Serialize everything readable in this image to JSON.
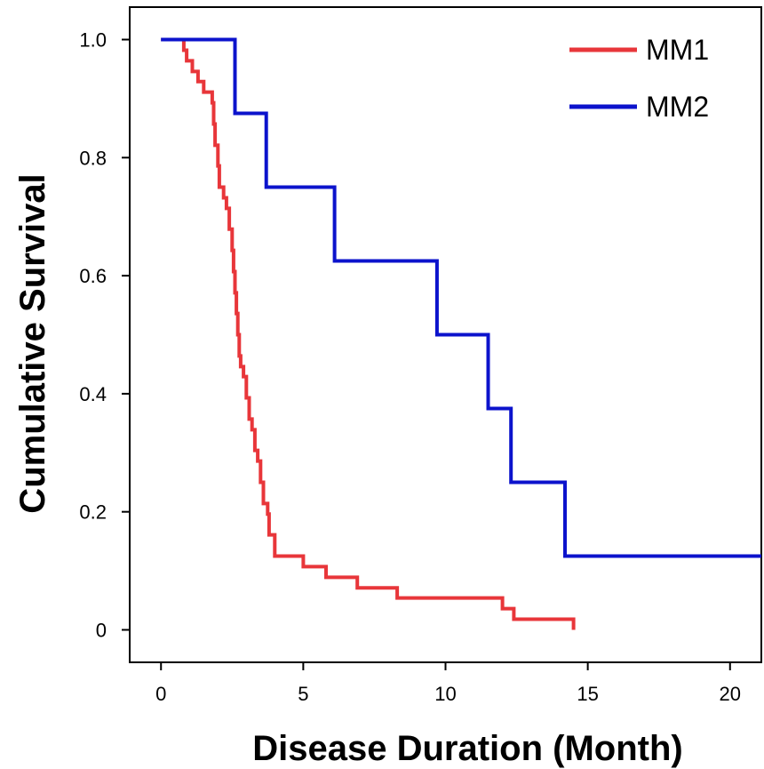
{
  "chart_data": {
    "type": "line",
    "step": true,
    "xlabel": "Disease Duration (Month)",
    "ylabel": "Cumulative Survival",
    "xlim": [
      -1.1,
      21.1
    ],
    "ylim": [
      -0.055,
      1.055
    ],
    "x_ticks": [
      0,
      5,
      10,
      15,
      20
    ],
    "x_tick_labels": [
      "0",
      "5",
      "10",
      "15",
      "20"
    ],
    "y_ticks": [
      0,
      0.2,
      0.4,
      0.6,
      0.8,
      1.0
    ],
    "y_tick_labels": [
      "0",
      "0.2",
      "0.4",
      "0.6",
      "0.8",
      "1.0"
    ],
    "grid": false,
    "legend_position": "top-right",
    "series": [
      {
        "name": "MM1",
        "color": "#e8363a",
        "points": [
          [
            0,
            1.0
          ],
          [
            0.7,
            1.0
          ],
          [
            0.8,
            0.982
          ],
          [
            0.9,
            0.964
          ],
          [
            1.1,
            0.946
          ],
          [
            1.3,
            0.929
          ],
          [
            1.5,
            0.911
          ],
          [
            1.8,
            0.893
          ],
          [
            1.85,
            0.857
          ],
          [
            1.9,
            0.821
          ],
          [
            2.0,
            0.786
          ],
          [
            2.05,
            0.75
          ],
          [
            2.2,
            0.732
          ],
          [
            2.3,
            0.714
          ],
          [
            2.4,
            0.679
          ],
          [
            2.5,
            0.643
          ],
          [
            2.55,
            0.607
          ],
          [
            2.6,
            0.571
          ],
          [
            2.65,
            0.536
          ],
          [
            2.7,
            0.5
          ],
          [
            2.75,
            0.464
          ],
          [
            2.8,
            0.446
          ],
          [
            2.9,
            0.429
          ],
          [
            3.0,
            0.393
          ],
          [
            3.1,
            0.357
          ],
          [
            3.2,
            0.339
          ],
          [
            3.3,
            0.304
          ],
          [
            3.4,
            0.286
          ],
          [
            3.5,
            0.25
          ],
          [
            3.6,
            0.214
          ],
          [
            3.75,
            0.196
          ],
          [
            3.8,
            0.161
          ],
          [
            4.0,
            0.125
          ],
          [
            5.0,
            0.107
          ],
          [
            5.8,
            0.089
          ],
          [
            6.9,
            0.071
          ],
          [
            8.3,
            0.054
          ],
          [
            12.0,
            0.036
          ],
          [
            12.4,
            0.018
          ],
          [
            14.5,
            0.018
          ],
          [
            14.5,
            0.0
          ]
        ]
      },
      {
        "name": "MM2",
        "color": "#0c13cc",
        "points": [
          [
            0,
            1.0
          ],
          [
            2.6,
            1.0
          ],
          [
            2.6,
            0.875
          ],
          [
            3.7,
            0.875
          ],
          [
            3.7,
            0.75
          ],
          [
            6.1,
            0.75
          ],
          [
            6.1,
            0.625
          ],
          [
            9.7,
            0.625
          ],
          [
            9.7,
            0.5
          ],
          [
            11.5,
            0.5
          ],
          [
            11.5,
            0.375
          ],
          [
            12.3,
            0.375
          ],
          [
            12.3,
            0.25
          ],
          [
            14.2,
            0.25
          ],
          [
            14.2,
            0.125
          ],
          [
            21.1,
            0.125
          ]
        ]
      }
    ]
  }
}
